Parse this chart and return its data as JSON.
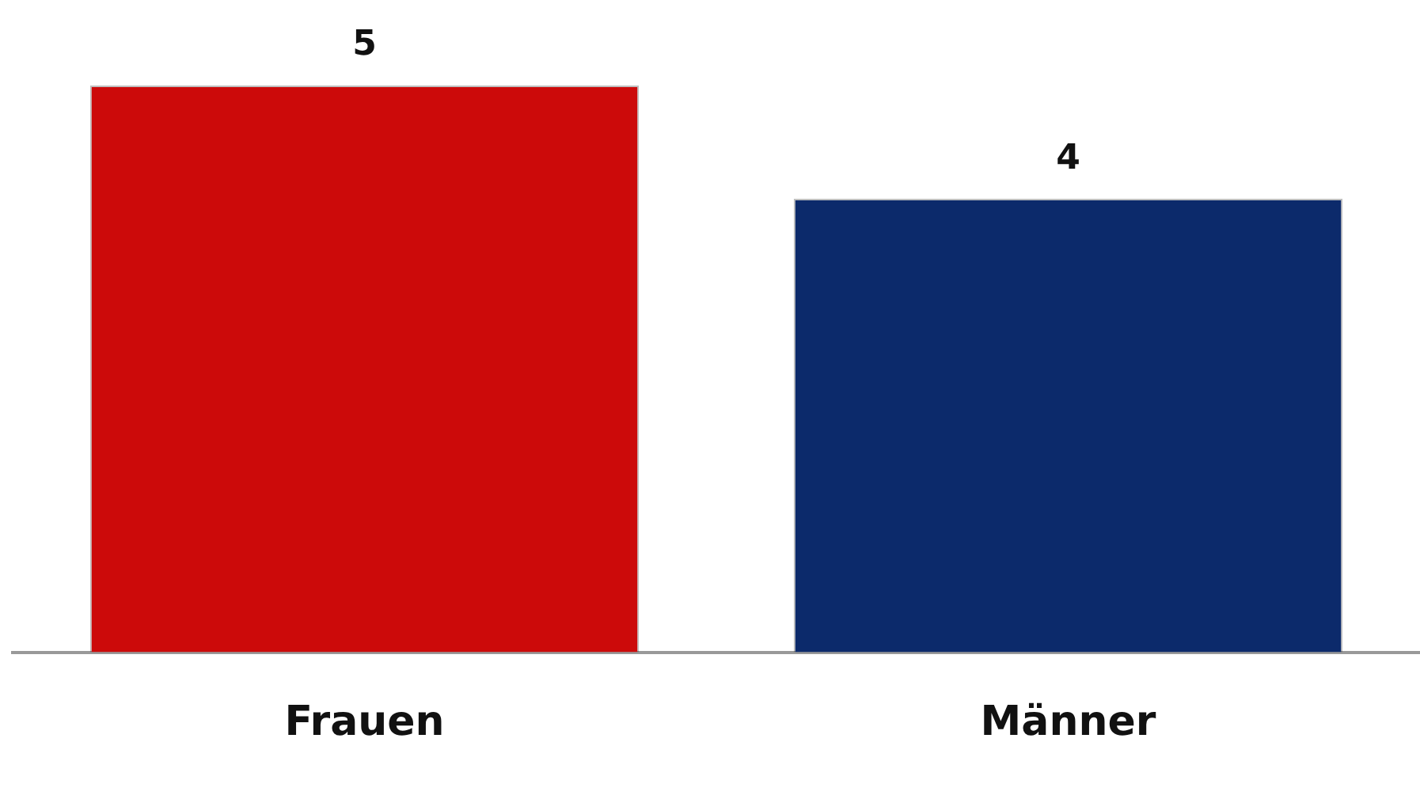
{
  "chart_data": {
    "type": "bar",
    "categories": [
      "Frauen",
      "Männer"
    ],
    "values": [
      5,
      4
    ],
    "colors": [
      "#cc0a0a",
      "#0c2a6b"
    ],
    "data_labels": true,
    "grid": false,
    "legend": false
  }
}
